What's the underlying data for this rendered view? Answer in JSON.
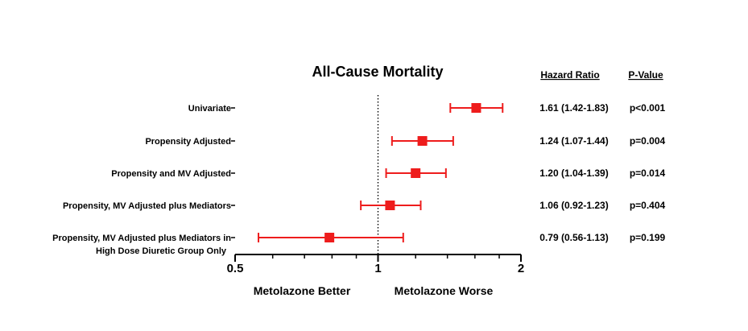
{
  "chart_data": {
    "type": "forest",
    "title": "All-Cause Mortality",
    "x_scale": "log2",
    "xlim": [
      0.5,
      2
    ],
    "reference_line": 1,
    "x_ticks": [
      {
        "value": 0.5,
        "label": "0.5"
      },
      {
        "value": 1,
        "label": "1"
      },
      {
        "value": 2,
        "label": "2"
      }
    ],
    "x_label_left": "Metolazone Better",
    "x_label_right": "Metolazone Worse",
    "column_headers": {
      "hazard_ratio": "Hazard Ratio",
      "p_value": "P-Value"
    },
    "rows": [
      {
        "label": [
          "Univariate"
        ],
        "hr": 1.61,
        "lo": 1.42,
        "hi": 1.83,
        "hr_text": "1.61 (1.42-1.83)",
        "p_text": "p<0.001"
      },
      {
        "label": [
          "Propensity Adjusted"
        ],
        "hr": 1.24,
        "lo": 1.07,
        "hi": 1.44,
        "hr_text": "1.24 (1.07-1.44)",
        "p_text": "p=0.004"
      },
      {
        "label": [
          "Propensity and MV Adjusted"
        ],
        "hr": 1.2,
        "lo": 1.04,
        "hi": 1.39,
        "hr_text": "1.20 (1.04-1.39)",
        "p_text": "p=0.014"
      },
      {
        "label": [
          "Propensity, MV Adjusted plus Mediators"
        ],
        "hr": 1.06,
        "lo": 0.92,
        "hi": 1.23,
        "hr_text": "1.06 (0.92-1.23)",
        "p_text": "p=0.404"
      },
      {
        "label": [
          "Propensity, MV Adjusted plus Mediators in",
          "High Dose Diuretic Group Only"
        ],
        "hr": 0.79,
        "lo": 0.56,
        "hi": 1.13,
        "hr_text": "0.79 (0.56-1.13)",
        "p_text": "p=0.199"
      }
    ],
    "colors": {
      "marker": "#ee1c1c",
      "axis": "#000000",
      "text": "#000000"
    }
  }
}
